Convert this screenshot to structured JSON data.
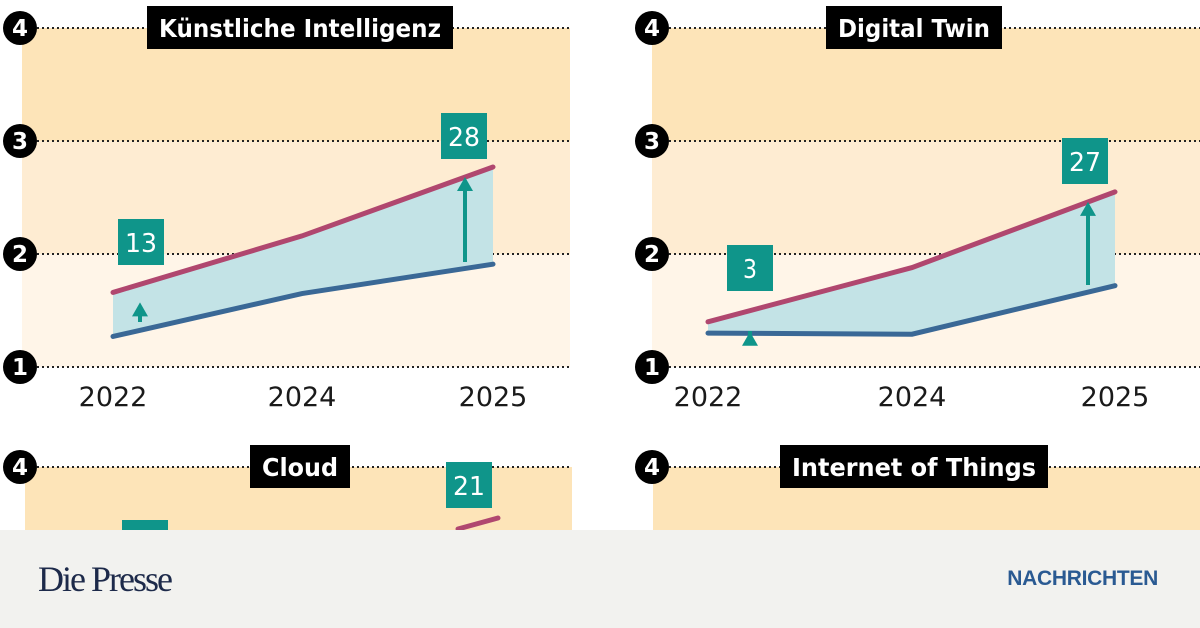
{
  "colors": {
    "band_top": "#fde4b8",
    "band_mid": "#feecd2",
    "band_low": "#fff5e8",
    "upper_line": "#b0476f",
    "lower_line": "#3a6896",
    "gap_fill": "#c3e3e6",
    "label_box": "#0f958a",
    "title_box": "#000000"
  },
  "chart_data": [
    {
      "type": "line",
      "title": "Künstliche Intelligenz",
      "categories": [
        "2022",
        "2024",
        "2025"
      ],
      "y_ticks": [
        "1",
        "2",
        "3",
        "4"
      ],
      "ylim": [
        1,
        4
      ],
      "grid": true,
      "series": [
        {
          "values": [
            1.66,
            2.16,
            2.77
          ]
        },
        {
          "values": [
            1.27,
            1.65,
            1.91
          ]
        }
      ],
      "annotations": [
        {
          "category": "2022",
          "text": "13"
        },
        {
          "category": "2025",
          "text": "28"
        }
      ]
    },
    {
      "type": "line",
      "title": "Digital Twin",
      "categories": [
        "2022",
        "2024",
        "2025"
      ],
      "y_ticks": [
        "1",
        "2",
        "3",
        "4"
      ],
      "ylim": [
        1,
        4
      ],
      "grid": true,
      "series": [
        {
          "values": [
            1.4,
            1.88,
            2.55
          ]
        },
        {
          "values": [
            1.3,
            1.29,
            1.72
          ]
        }
      ],
      "annotations": [
        {
          "category": "2022",
          "text": "3"
        },
        {
          "category": "2025",
          "text": "27"
        }
      ]
    },
    {
      "type": "line",
      "title": "Cloud",
      "y_ticks": [
        "4"
      ],
      "ylim": [
        1,
        4
      ],
      "grid": true,
      "annotations": [
        {
          "category": "2025",
          "text": "21"
        }
      ]
    },
    {
      "type": "line",
      "title": "Internet of Things",
      "y_ticks": [
        "4"
      ],
      "ylim": [
        1,
        4
      ],
      "grid": true
    }
  ],
  "footer": {
    "logo": "Die Presse",
    "section": "NACHRICHTEN"
  }
}
